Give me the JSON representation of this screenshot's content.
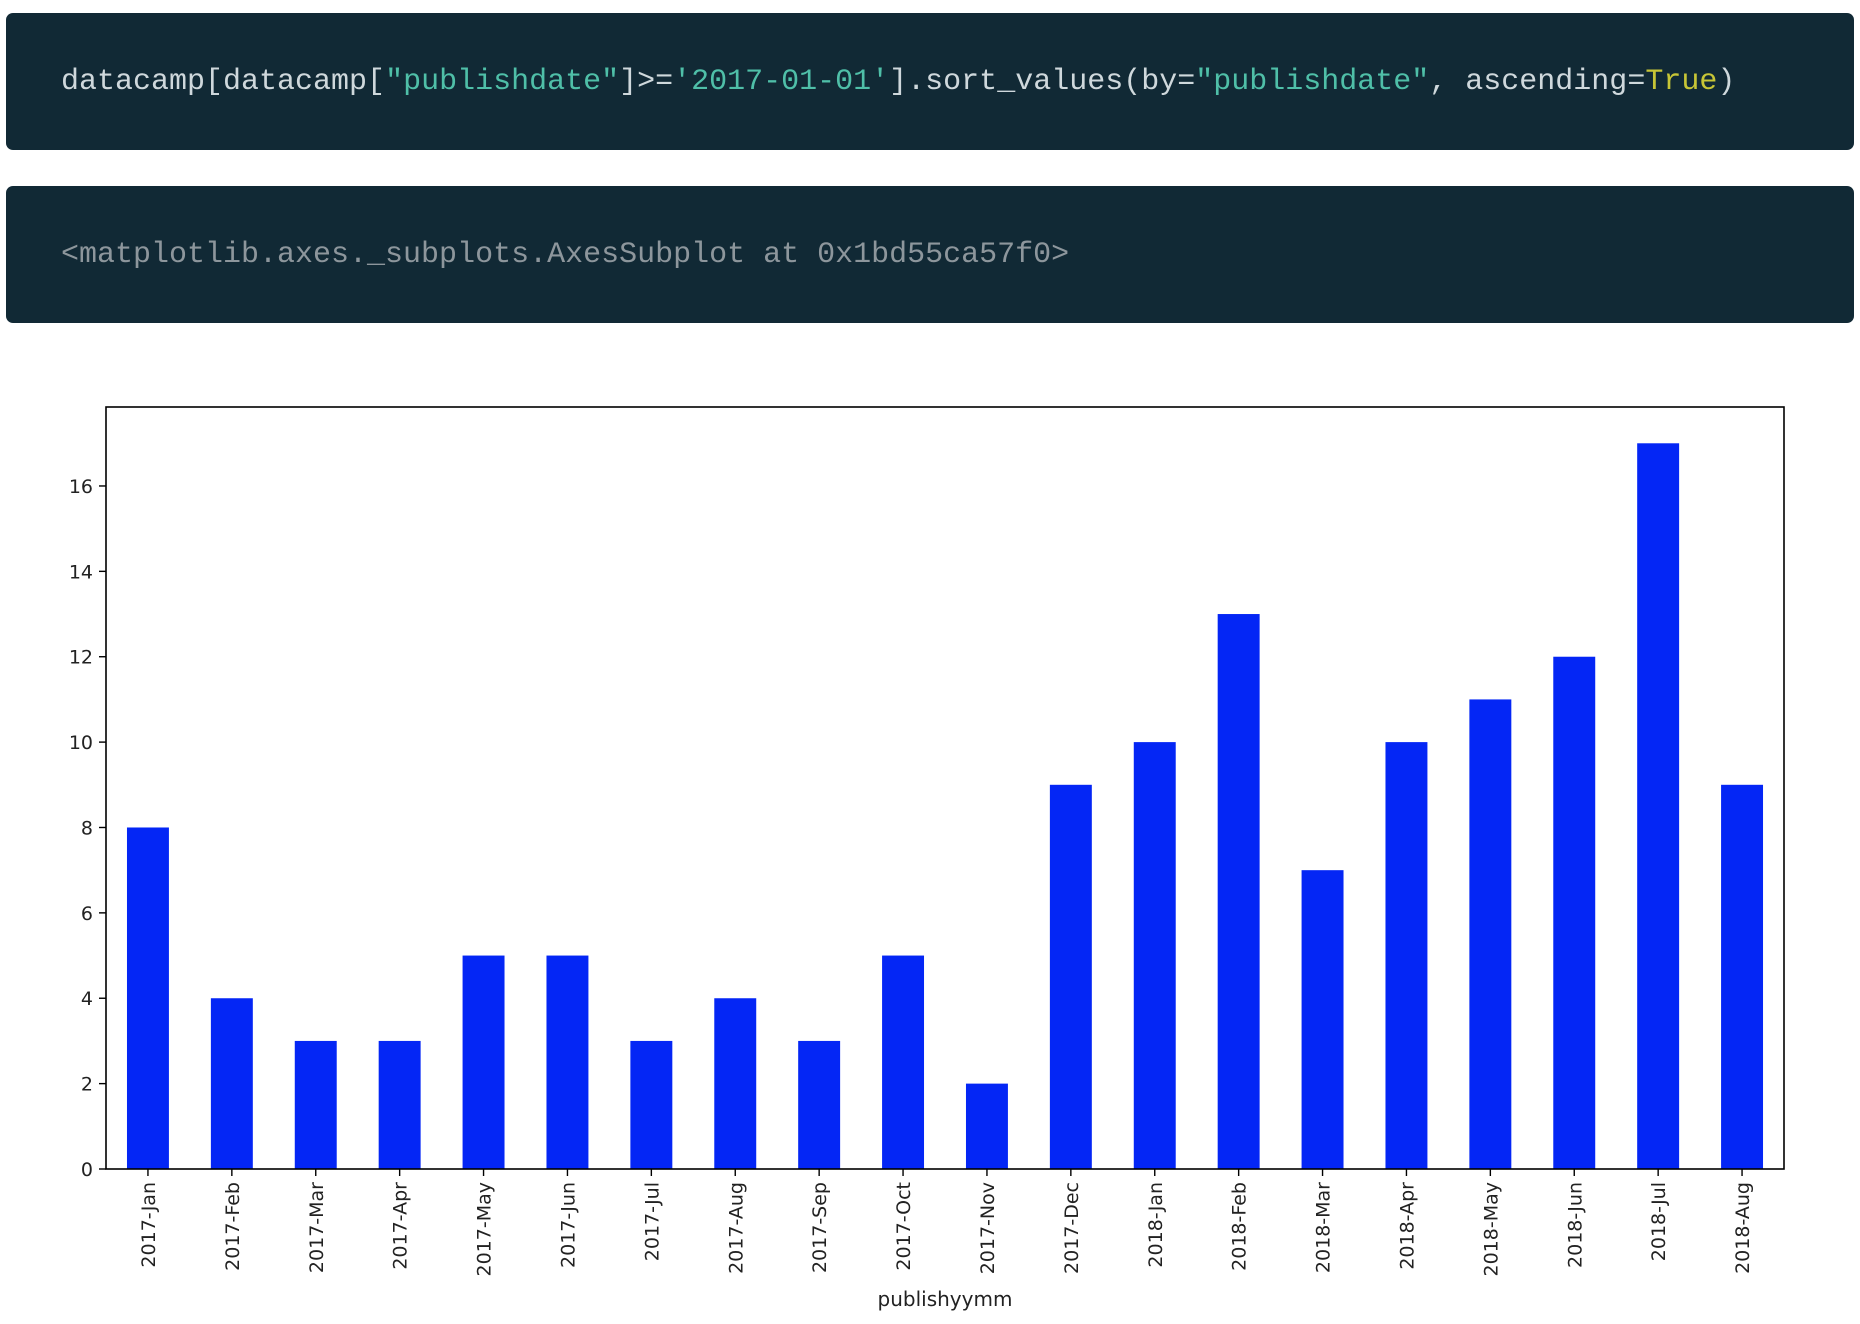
{
  "code_cell": {
    "tokens": [
      {
        "text": "datacamp[datacamp[",
        "kind": "plain"
      },
      {
        "text": "\"publishdate\"",
        "kind": "str"
      },
      {
        "text": "]>=",
        "kind": "plain"
      },
      {
        "text": "'2017-01-01'",
        "kind": "str"
      },
      {
        "text": "].sort_values(by=",
        "kind": "plain"
      },
      {
        "text": "\"publishdate\"",
        "kind": "str"
      },
      {
        "text": ", ascending=",
        "kind": "plain"
      },
      {
        "text": "True",
        "kind": "kw"
      },
      {
        "text": ")",
        "kind": "plain"
      }
    ]
  },
  "output_cell": {
    "text": "<matplotlib.axes._subplots.AxesSubplot at 0x1bd55ca57f0>"
  },
  "colors": {
    "code_background": "#112935",
    "string_token": "#4fbfa8",
    "keyword_token": "#c7c536",
    "bar_fill": "#0426f5"
  },
  "chart_data": {
    "type": "bar",
    "categories": [
      "2017-Jan",
      "2017-Feb",
      "2017-Mar",
      "2017-Apr",
      "2017-May",
      "2017-Jun",
      "2017-Jul",
      "2017-Aug",
      "2017-Sep",
      "2017-Oct",
      "2017-Nov",
      "2017-Dec",
      "2018-Jan",
      "2018-Feb",
      "2018-Mar",
      "2018-Apr",
      "2018-May",
      "2018-Jun",
      "2018-Jul",
      "2018-Aug"
    ],
    "values": [
      8,
      4,
      3,
      3,
      5,
      5,
      3,
      4,
      3,
      5,
      2,
      9,
      10,
      13,
      7,
      10,
      11,
      12,
      17,
      9
    ],
    "xlabel": "publishyymm",
    "ylabel": "",
    "ylim": [
      0,
      17.85
    ],
    "yticks": [
      0,
      2,
      4,
      6,
      8,
      10,
      12,
      14,
      16
    ],
    "grid": false,
    "legend": "none",
    "x_tick_rotation": "vertical"
  }
}
